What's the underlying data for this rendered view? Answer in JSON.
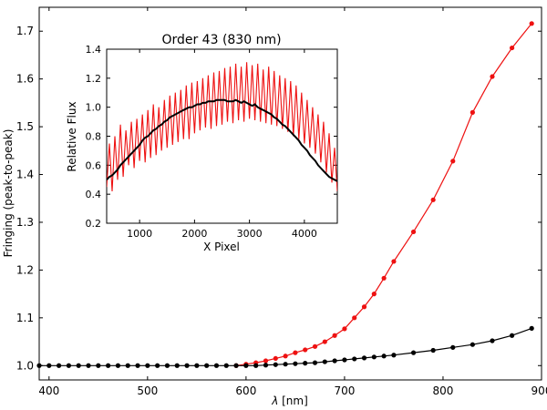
{
  "chart_data": [
    {
      "id": "main",
      "type": "line",
      "title": "",
      "xlabel_symbol": "λ",
      "xlabel_unit": " [nm]",
      "ylabel": "Fringing (peak-to-peak)",
      "xlim": [
        390,
        900
      ],
      "ylim": [
        0.97,
        1.75
      ],
      "xticks": [
        400,
        500,
        600,
        700,
        800,
        900
      ],
      "xtick_labels": [
        "400",
        "500",
        "600",
        "700",
        "800",
        "900"
      ],
      "yticks": [
        1.0,
        1.1,
        1.2,
        1.3,
        1.4,
        1.5,
        1.6,
        1.7
      ],
      "ytick_labels": [
        "1.0",
        "1.1",
        "1.2",
        "1.3",
        "1.4",
        "1.5",
        "1.6",
        "1.7"
      ],
      "series": [
        {
          "name": "red",
          "color": "#ee1111",
          "x": [
            590,
            600,
            610,
            620,
            630,
            640,
            650,
            660,
            670,
            680,
            690,
            700,
            710,
            720,
            730,
            740,
            750,
            770,
            790,
            810,
            830,
            850,
            870,
            890
          ],
          "y": [
            1.0,
            1.003,
            1.006,
            1.01,
            1.015,
            1.02,
            1.027,
            1.033,
            1.04,
            1.05,
            1.063,
            1.077,
            1.1,
            1.123,
            1.15,
            1.183,
            1.218,
            1.28,
            1.347,
            1.428,
            1.53,
            1.605,
            1.665,
            1.716
          ]
        },
        {
          "name": "black",
          "color": "#000000",
          "x": [
            390,
            400,
            410,
            420,
            430,
            440,
            450,
            460,
            470,
            480,
            490,
            500,
            510,
            520,
            530,
            540,
            550,
            560,
            570,
            580,
            590,
            600,
            610,
            620,
            630,
            640,
            650,
            660,
            670,
            680,
            690,
            700,
            710,
            720,
            730,
            740,
            750,
            770,
            790,
            810,
            830,
            850,
            870,
            890
          ],
          "y": [
            1.0,
            1.0,
            1.0,
            1.0,
            1.0,
            1.0,
            1.0,
            1.0,
            1.0,
            1.0,
            1.0,
            1.0,
            1.0,
            1.0,
            1.0,
            1.0,
            1.0,
            1.0,
            1.0,
            1.0,
            1.0,
            1.0,
            1.0,
            1.001,
            1.002,
            1.003,
            1.004,
            1.005,
            1.006,
            1.008,
            1.01,
            1.012,
            1.014,
            1.016,
            1.018,
            1.02,
            1.022,
            1.027,
            1.032,
            1.038,
            1.044,
            1.052,
            1.063,
            1.078
          ]
        }
      ]
    },
    {
      "id": "inset",
      "type": "line",
      "title": "Order 43 (830 nm)",
      "xlabel": "X Pixel",
      "ylabel": "Relative Flux",
      "xlim": [
        400,
        4600
      ],
      "ylim": [
        0.2,
        1.4
      ],
      "xticks": [
        1000,
        2000,
        3000,
        4000
      ],
      "xtick_labels": [
        "1000",
        "2000",
        "3000",
        "4000"
      ],
      "yticks": [
        0.2,
        0.4,
        0.6,
        0.8,
        1.0,
        1.2,
        1.4
      ],
      "ytick_labels": [
        "0.2",
        "0.4",
        "0.6",
        "0.8",
        "1.0",
        "1.2",
        "1.4"
      ],
      "series": [
        {
          "name": "raw",
          "color": "#ee1111",
          "x_start": 400,
          "x_step": 50,
          "y": [
            0.45,
            0.75,
            0.42,
            0.8,
            0.5,
            0.88,
            0.52,
            0.84,
            0.6,
            0.9,
            0.58,
            0.92,
            0.63,
            0.95,
            0.62,
            0.98,
            0.65,
            1.02,
            0.67,
            1.0,
            0.7,
            1.05,
            0.72,
            1.08,
            0.74,
            1.1,
            0.76,
            1.12,
            0.78,
            1.15,
            0.78,
            1.17,
            0.82,
            1.18,
            0.84,
            1.2,
            0.86,
            1.22,
            0.85,
            1.24,
            0.87,
            1.25,
            0.88,
            1.27,
            0.9,
            1.28,
            0.89,
            1.3,
            0.91,
            1.28,
            0.9,
            1.31,
            0.92,
            1.29,
            0.91,
            1.3,
            0.9,
            1.26,
            0.89,
            1.28,
            0.88,
            1.25,
            0.87,
            1.22,
            0.85,
            1.2,
            0.83,
            1.18,
            0.8,
            1.15,
            0.78,
            1.1,
            0.75,
            1.05,
            0.72,
            1.0,
            0.68,
            0.95,
            0.62,
            0.9,
            0.55,
            0.82,
            0.48,
            0.72,
            0.42
          ]
        },
        {
          "name": "corrected",
          "color": "#000000",
          "x_start": 400,
          "x_step": 50,
          "y": [
            0.5,
            0.52,
            0.53,
            0.55,
            0.57,
            0.6,
            0.62,
            0.64,
            0.66,
            0.68,
            0.7,
            0.72,
            0.74,
            0.77,
            0.79,
            0.8,
            0.82,
            0.84,
            0.85,
            0.87,
            0.88,
            0.9,
            0.91,
            0.93,
            0.94,
            0.95,
            0.96,
            0.97,
            0.98,
            0.99,
            1.0,
            1.0,
            1.01,
            1.02,
            1.02,
            1.03,
            1.03,
            1.04,
            1.04,
            1.04,
            1.05,
            1.05,
            1.05,
            1.05,
            1.04,
            1.04,
            1.04,
            1.05,
            1.04,
            1.03,
            1.04,
            1.03,
            1.02,
            1.01,
            1.02,
            1.0,
            0.99,
            0.98,
            0.97,
            0.96,
            0.95,
            0.93,
            0.92,
            0.9,
            0.88,
            0.87,
            0.85,
            0.83,
            0.81,
            0.79,
            0.77,
            0.74,
            0.72,
            0.7,
            0.67,
            0.65,
            0.63,
            0.6,
            0.58,
            0.56,
            0.54,
            0.52,
            0.51,
            0.5,
            0.49
          ]
        }
      ]
    }
  ]
}
